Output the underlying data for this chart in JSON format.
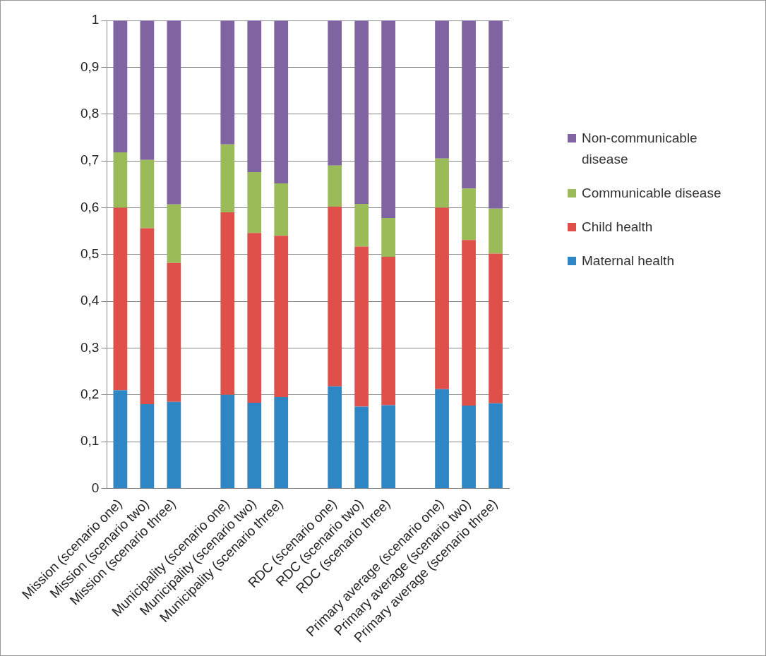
{
  "chart_data": {
    "type": "bar",
    "stacked": true,
    "categories": [
      "Mission (scenario one)",
      "Mission (scenario two)",
      "Mission (scenario three)",
      null,
      "Municipality (scenario one)",
      "Municipality (scenario two)",
      "Municipality (scenario three)",
      null,
      "RDC (scenario one)",
      "RDC (scenario two)",
      "RDC (scenario three)",
      null,
      "Primary average (scenario one)",
      "Primary average (scenario two)",
      "Primary average (scenario three)"
    ],
    "series": [
      {
        "name": "Maternal health",
        "color": "#2e87c4",
        "values": [
          0.21,
          0.18,
          0.185,
          null,
          0.2,
          0.183,
          0.195,
          null,
          0.218,
          0.175,
          0.178,
          null,
          0.212,
          0.177,
          0.182
        ]
      },
      {
        "name": "Child health",
        "color": "#e0504a",
        "values": [
          0.39,
          0.376,
          0.297,
          null,
          0.39,
          0.363,
          0.345,
          null,
          0.384,
          0.342,
          0.317,
          null,
          0.388,
          0.354,
          0.32
        ]
      },
      {
        "name": "Communicable disease",
        "color": "#9bbb59",
        "values": [
          0.118,
          0.146,
          0.125,
          null,
          0.145,
          0.13,
          0.112,
          null,
          0.088,
          0.091,
          0.083,
          null,
          0.105,
          0.11,
          0.096
        ]
      },
      {
        "name": "Non-communicable disease",
        "color": "#8064a2",
        "values": [
          0.282,
          0.298,
          0.393,
          null,
          0.265,
          0.324,
          0.348,
          null,
          0.31,
          0.392,
          0.422,
          null,
          0.295,
          0.359,
          0.402
        ]
      }
    ],
    "ylim": [
      0,
      1
    ],
    "yticks": [
      0,
      {
        "value": 0.1,
        "label": "0,1"
      },
      {
        "value": 0.2,
        "label": "0,2"
      },
      {
        "value": 0.3,
        "label": "0,3"
      },
      {
        "value": 0.4,
        "label": "0,4"
      },
      {
        "value": 0.5,
        "label": "0,5"
      },
      {
        "value": 0.6,
        "label": "0,6"
      },
      {
        "value": 0.7,
        "label": "0,7"
      },
      {
        "value": 0.8,
        "label": "0,8"
      },
      {
        "value": 0.9,
        "label": "0,9"
      },
      1
    ],
    "grid": "y",
    "legend": "right"
  }
}
